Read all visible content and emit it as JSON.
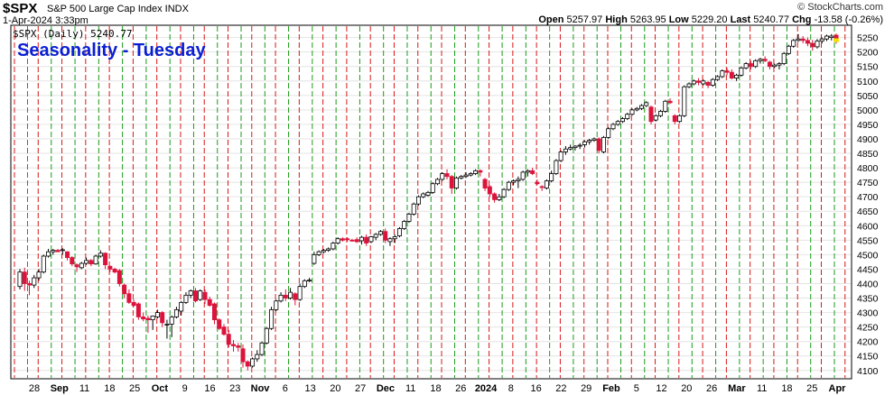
{
  "header": {
    "symbol": "$SPX",
    "description": "S&P 500 Large Cap Index INDX",
    "date": "1-Apr-2024 3:33pm",
    "watermark": "© StockCharts.com",
    "open_label": "Open",
    "open_value": "5257.97",
    "high_label": "High",
    "high_value": "5263.95",
    "low_label": "Low",
    "low_value": "5229.20",
    "last_label": "Last",
    "last_value": "5240.77",
    "chg_label": "Chg",
    "chg_value": "-13.58 (-0.26%)",
    "legend": "$SPX (Daily) 5240.77"
  },
  "chart_data": {
    "type": "candlestick",
    "title": "Seasonality - Tuesday",
    "series_name": "$SPX (Daily)",
    "ylim": [
      4090,
      5280
    ],
    "y_ticks": [
      4100,
      4150,
      4200,
      4250,
      4300,
      4350,
      4400,
      4450,
      4500,
      4550,
      4600,
      4650,
      4700,
      4750,
      4800,
      4850,
      4900,
      4950,
      5000,
      5050,
      5100,
      5150,
      5200,
      5250
    ],
    "x_labels": [
      "28",
      "Sep",
      "11",
      "18",
      "25",
      "Oct",
      "9",
      "16",
      "23",
      "Nov",
      "6",
      "13",
      "20",
      "27",
      "Dec",
      "11",
      "18",
      "26",
      "2024",
      "8",
      "16",
      "22",
      "29",
      "Feb",
      "5",
      "12",
      "20",
      "26",
      "Mar",
      "11",
      "18",
      "25",
      "Apr"
    ],
    "bold_x_labels": [
      "Sep",
      "Oct",
      "Nov",
      "Dec",
      "2024",
      "Feb",
      "Mar",
      "Apr"
    ],
    "vertical_lines": "green dashed line before each Tuesday, red dashed line after each Tuesday",
    "grid": true,
    "colors": {
      "up": "#ffffff",
      "down": "#dc143c",
      "outline": "#000000",
      "green_line": "#1a9a1a",
      "red_line": "#d81818",
      "title": "#0a1ed2"
    },
    "candles": [
      [
        4390,
        4450,
        4380,
        4440
      ],
      [
        4440,
        4455,
        4375,
        4400
      ],
      [
        4400,
        4410,
        4360,
        4395
      ],
      [
        4395,
        4430,
        4385,
        4420
      ],
      [
        4420,
        4450,
        4410,
        4440
      ],
      [
        4440,
        4500,
        4435,
        4495
      ],
      [
        4495,
        4520,
        4490,
        4510
      ],
      [
        4510,
        4520,
        4500,
        4515
      ],
      [
        4515,
        4520,
        4510,
        4510
      ],
      [
        4515,
        4522,
        4500,
        4517
      ],
      [
        4510,
        4512,
        4480,
        4490
      ],
      [
        4490,
        4495,
        4460,
        4468
      ],
      [
        4465,
        4470,
        4440,
        4458
      ],
      [
        4455,
        4475,
        4450,
        4470
      ],
      [
        4470,
        4490,
        4465,
        4480
      ],
      [
        4480,
        4485,
        4460,
        4468
      ],
      [
        4468,
        4500,
        4465,
        4495
      ],
      [
        4495,
        4515,
        4490,
        4505
      ],
      [
        4505,
        4508,
        4450,
        4465
      ],
      [
        4460,
        4462,
        4440,
        4450
      ],
      [
        4450,
        4455,
        4435,
        4440
      ],
      [
        4445,
        4450,
        4390,
        4400
      ],
      [
        4395,
        4400,
        4350,
        4365
      ],
      [
        4365,
        4380,
        4330,
        4335
      ],
      [
        4335,
        4345,
        4320,
        4325
      ],
      [
        4330,
        4335,
        4275,
        4285
      ],
      [
        4285,
        4300,
        4270,
        4278
      ],
      [
        4280,
        4290,
        4230,
        4275
      ],
      [
        4275,
        4290,
        4240,
        4288
      ],
      [
        4285,
        4310,
        4280,
        4300
      ],
      [
        4300,
        4305,
        4250,
        4265
      ],
      [
        4260,
        4275,
        4210,
        4260
      ],
      [
        4260,
        4290,
        4215,
        4285
      ],
      [
        4285,
        4320,
        4280,
        4310
      ],
      [
        4305,
        4340,
        4290,
        4335
      ],
      [
        4335,
        4370,
        4330,
        4360
      ],
      [
        4360,
        4380,
        4350,
        4375
      ],
      [
        4375,
        4385,
        4335,
        4340
      ],
      [
        4345,
        4380,
        4340,
        4375
      ],
      [
        4370,
        4380,
        4330,
        4345
      ],
      [
        4345,
        4355,
        4320,
        4325
      ],
      [
        4330,
        4335,
        4260,
        4275
      ],
      [
        4275,
        4280,
        4240,
        4245
      ],
      [
        4250,
        4260,
        4220,
        4225
      ],
      [
        4225,
        4240,
        4180,
        4190
      ],
      [
        4190,
        4205,
        4165,
        4185
      ],
      [
        4185,
        4195,
        4165,
        4180
      ],
      [
        4175,
        4190,
        4110,
        4130
      ],
      [
        4130,
        4135,
        4100,
        4115
      ],
      [
        4115,
        4145,
        4110,
        4140
      ],
      [
        4140,
        4170,
        4130,
        4155
      ],
      [
        4155,
        4200,
        4150,
        4195
      ],
      [
        4195,
        4250,
        4190,
        4245
      ],
      [
        4245,
        4320,
        4240,
        4310
      ],
      [
        4310,
        4345,
        4305,
        4340
      ],
      [
        4340,
        4370,
        4335,
        4360
      ],
      [
        4360,
        4380,
        4340,
        4350
      ],
      [
        4350,
        4385,
        4345,
        4370
      ],
      [
        4365,
        4370,
        4325,
        4345
      ],
      [
        4345,
        4400,
        4340,
        4390
      ],
      [
        4390,
        4415,
        4385,
        4410
      ],
      [
        4410,
        4420,
        4405,
        4412
      ],
      [
        4470,
        4510,
        4465,
        4500
      ],
      [
        4500,
        4515,
        4495,
        4510
      ],
      [
        4510,
        4520,
        4505,
        4515
      ],
      [
        4515,
        4525,
        4510,
        4520
      ],
      [
        4520,
        4545,
        4515,
        4540
      ],
      [
        4540,
        4560,
        4535,
        4555
      ],
      [
        4555,
        4560,
        4545,
        4550
      ],
      [
        4555,
        4560,
        4545,
        4552
      ],
      [
        4550,
        4555,
        4545,
        4548
      ],
      [
        4552,
        4560,
        4540,
        4545
      ],
      [
        4548,
        4565,
        4535,
        4560
      ],
      [
        4560,
        4570,
        4530,
        4540
      ],
      [
        4545,
        4565,
        4540,
        4562
      ],
      [
        4560,
        4575,
        4550,
        4570
      ],
      [
        4570,
        4585,
        4565,
        4580
      ],
      [
        4580,
        4590,
        4540,
        4550
      ],
      [
        4545,
        4560,
        4530,
        4555
      ],
      [
        4555,
        4570,
        4540,
        4562
      ],
      [
        4565,
        4595,
        4560,
        4590
      ],
      [
        4590,
        4620,
        4585,
        4615
      ],
      [
        4615,
        4645,
        4610,
        4640
      ],
      [
        4640,
        4680,
        4635,
        4675
      ],
      [
        4675,
        4705,
        4670,
        4700
      ],
      [
        4700,
        4715,
        4695,
        4710
      ],
      [
        4705,
        4720,
        4700,
        4715
      ],
      [
        4715,
        4750,
        4710,
        4745
      ],
      [
        4745,
        4765,
        4740,
        4760
      ],
      [
        4760,
        4785,
        4755,
        4780
      ],
      [
        4780,
        4795,
        4760,
        4770
      ],
      [
        4770,
        4775,
        4710,
        4730
      ],
      [
        4730,
        4770,
        4725,
        4765
      ],
      [
        4765,
        4775,
        4760,
        4770
      ],
      [
        4770,
        4785,
        4765,
        4775
      ],
      [
        4775,
        4785,
        4770,
        4780
      ],
      [
        4780,
        4795,
        4775,
        4790
      ],
      [
        4790,
        4795,
        4770,
        4785
      ],
      [
        4760,
        4765,
        4720,
        4730
      ],
      [
        4735,
        4740,
        4700,
        4710
      ],
      [
        4710,
        4715,
        4680,
        4690
      ],
      [
        4690,
        4710,
        4685,
        4700
      ],
      [
        4700,
        4730,
        4695,
        4725
      ],
      [
        4725,
        4755,
        4720,
        4750
      ],
      [
        4750,
        4760,
        4740,
        4755
      ],
      [
        4755,
        4770,
        4730,
        4760
      ],
      [
        4760,
        4790,
        4755,
        4785
      ],
      [
        4785,
        4795,
        4770,
        4790
      ],
      [
        4790,
        4800,
        4775,
        4780
      ],
      [
        4750,
        4760,
        4740,
        4745
      ],
      [
        4735,
        4740,
        4720,
        4732
      ],
      [
        4730,
        4760,
        4725,
        4755
      ],
      [
        4755,
        4790,
        4750,
        4780
      ],
      [
        4780,
        4830,
        4775,
        4825
      ],
      [
        4825,
        4860,
        4820,
        4855
      ],
      [
        4855,
        4875,
        4845,
        4865
      ],
      [
        4865,
        4880,
        4860,
        4870
      ],
      [
        4870,
        4878,
        4860,
        4875
      ],
      [
        4875,
        4885,
        4865,
        4878
      ],
      [
        4880,
        4895,
        4870,
        4890
      ],
      [
        4890,
        4900,
        4880,
        4895
      ],
      [
        4895,
        4905,
        4890,
        4900
      ],
      [
        4900,
        4905,
        4850,
        4860
      ],
      [
        4855,
        4910,
        4850,
        4905
      ],
      [
        4905,
        4940,
        4900,
        4935
      ],
      [
        4935,
        4955,
        4930,
        4950
      ],
      [
        4950,
        4965,
        4945,
        4960
      ],
      [
        4960,
        4975,
        4955,
        4970
      ],
      [
        4970,
        4990,
        4965,
        4985
      ],
      [
        4985,
        5005,
        4980,
        5000
      ],
      [
        5000,
        5010,
        4995,
        5005
      ],
      [
        5005,
        5020,
        5000,
        5015
      ],
      [
        5015,
        5030,
        5010,
        5025
      ],
      [
        5010,
        5015,
        4950,
        4960
      ],
      [
        4965,
        4985,
        4960,
        4980
      ],
      [
        4980,
        5000,
        4975,
        4995
      ],
      [
        4995,
        5035,
        4990,
        5030
      ],
      [
        5030,
        5040,
        5020,
        5025
      ],
      [
        4980,
        4985,
        4950,
        4960
      ],
      [
        4960,
        4985,
        4955,
        4980
      ],
      [
        4980,
        5085,
        4975,
        5080
      ],
      [
        5080,
        5095,
        5075,
        5090
      ],
      [
        5090,
        5105,
        5085,
        5100
      ],
      [
        5100,
        5110,
        5085,
        5095
      ],
      [
        5090,
        5105,
        5085,
        5100
      ],
      [
        5095,
        5100,
        5075,
        5085
      ],
      [
        5085,
        5110,
        5080,
        5105
      ],
      [
        5105,
        5120,
        5100,
        5115
      ],
      [
        5115,
        5140,
        5110,
        5135
      ],
      [
        5135,
        5145,
        5120,
        5130
      ],
      [
        5130,
        5140,
        5105,
        5110
      ],
      [
        5110,
        5125,
        5100,
        5120
      ],
      [
        5120,
        5150,
        5115,
        5145
      ],
      [
        5145,
        5165,
        5140,
        5160
      ],
      [
        5160,
        5170,
        5140,
        5150
      ],
      [
        5150,
        5175,
        5145,
        5170
      ],
      [
        5170,
        5180,
        5160,
        5175
      ],
      [
        5175,
        5185,
        5165,
        5170
      ],
      [
        5165,
        5170,
        5140,
        5150
      ],
      [
        5150,
        5160,
        5145,
        5155
      ],
      [
        5155,
        5165,
        5140,
        5160
      ],
      [
        5160,
        5200,
        5155,
        5195
      ],
      [
        5195,
        5225,
        5190,
        5220
      ],
      [
        5220,
        5245,
        5215,
        5240
      ],
      [
        5240,
        5262,
        5235,
        5245
      ],
      [
        5245,
        5255,
        5230,
        5240
      ],
      [
        5240,
        5250,
        5220,
        5230
      ],
      [
        5230,
        5242,
        5205,
        5218
      ],
      [
        5218,
        5245,
        5212,
        5238
      ],
      [
        5238,
        5250,
        5230,
        5245
      ],
      [
        5245,
        5260,
        5238,
        5255
      ],
      [
        5250,
        5262,
        5240,
        5255
      ],
      [
        5258,
        5264,
        5229,
        5241
      ]
    ]
  }
}
